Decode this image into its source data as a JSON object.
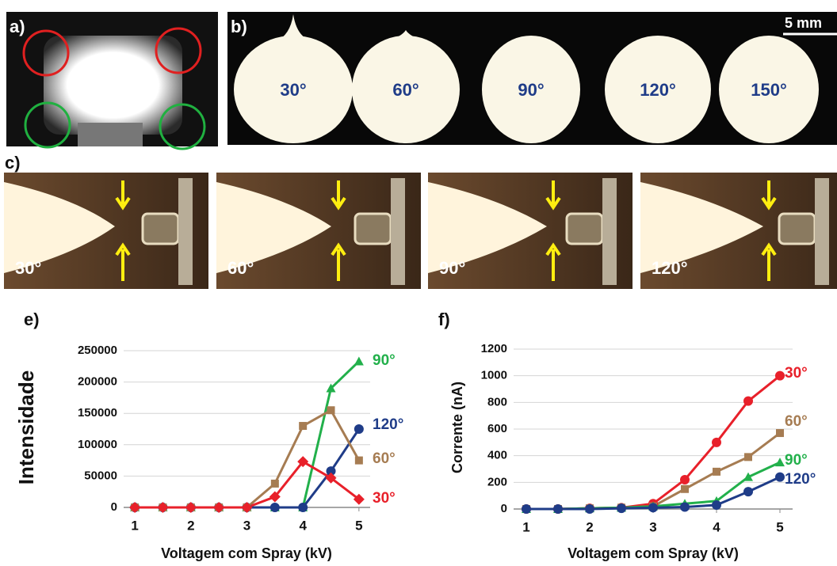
{
  "panels": {
    "a": {
      "label": "a)"
    },
    "b": {
      "label": "b)",
      "scale": "5 mm",
      "drops": [
        "30°",
        "60°",
        "90°",
        "120°",
        "150°"
      ]
    },
    "c": {
      "label": "c)",
      "images": [
        "30°",
        "60°",
        "90°",
        "120°"
      ]
    }
  },
  "chart_data": [
    {
      "type": "line",
      "panel": "e)",
      "y_label": "Intensidade",
      "x_label": "Voltagem com Spray (kV)",
      "x": [
        1,
        1.5,
        2,
        2.5,
        3,
        3.5,
        4,
        4.5,
        5
      ],
      "xlim": [
        0.8,
        5.2
      ],
      "xticks": [
        1,
        2,
        3,
        4,
        5
      ],
      "ylim": [
        0,
        250000
      ],
      "yticks": [
        0,
        50000,
        100000,
        150000,
        200000,
        250000
      ],
      "grid": true,
      "series": [
        {
          "name": "90°",
          "color": "#22b04b",
          "marker": "triangle",
          "values": [
            0,
            0,
            0,
            0,
            0,
            0,
            0,
            190000,
            233000
          ]
        },
        {
          "name": "120°",
          "color": "#1f3c88",
          "marker": "circle",
          "values": [
            0,
            0,
            0,
            0,
            0,
            0,
            0,
            58000,
            125000
          ]
        },
        {
          "name": "60°",
          "color": "#a67c52",
          "marker": "square",
          "values": [
            0,
            0,
            0,
            0,
            0,
            38000,
            130000,
            155000,
            75000
          ]
        },
        {
          "name": "30°",
          "color": "#e8202a",
          "marker": "diamond",
          "values": [
            0,
            0,
            0,
            0,
            0,
            17000,
            73000,
            47000,
            13000
          ]
        }
      ]
    },
    {
      "type": "line",
      "panel": "f)",
      "y_label": "Corrente (nA)",
      "x_label": "Voltagem com Spray (kV)",
      "x": [
        1,
        1.5,
        2,
        2.5,
        3,
        3.5,
        4,
        4.5,
        5
      ],
      "xlim": [
        0.8,
        5.2
      ],
      "xticks": [
        1,
        2,
        3,
        4,
        5
      ],
      "ylim": [
        0,
        1200
      ],
      "yticks": [
        0,
        200,
        400,
        600,
        800,
        1000,
        1200
      ],
      "grid": true,
      "series": [
        {
          "name": "30°",
          "color": "#e8202a",
          "marker": "circle",
          "values": [
            0,
            0,
            5,
            10,
            40,
            220,
            500,
            810,
            1000
          ]
        },
        {
          "name": "60°",
          "color": "#a67c52",
          "marker": "square",
          "values": [
            0,
            0,
            5,
            10,
            20,
            150,
            280,
            390,
            570
          ]
        },
        {
          "name": "90°",
          "color": "#22b04b",
          "marker": "triangle",
          "values": [
            0,
            0,
            5,
            10,
            20,
            40,
            60,
            240,
            350
          ]
        },
        {
          "name": "120°",
          "color": "#1f3c88",
          "marker": "circle",
          "values": [
            0,
            0,
            0,
            5,
            10,
            15,
            30,
            130,
            240
          ]
        }
      ]
    }
  ]
}
